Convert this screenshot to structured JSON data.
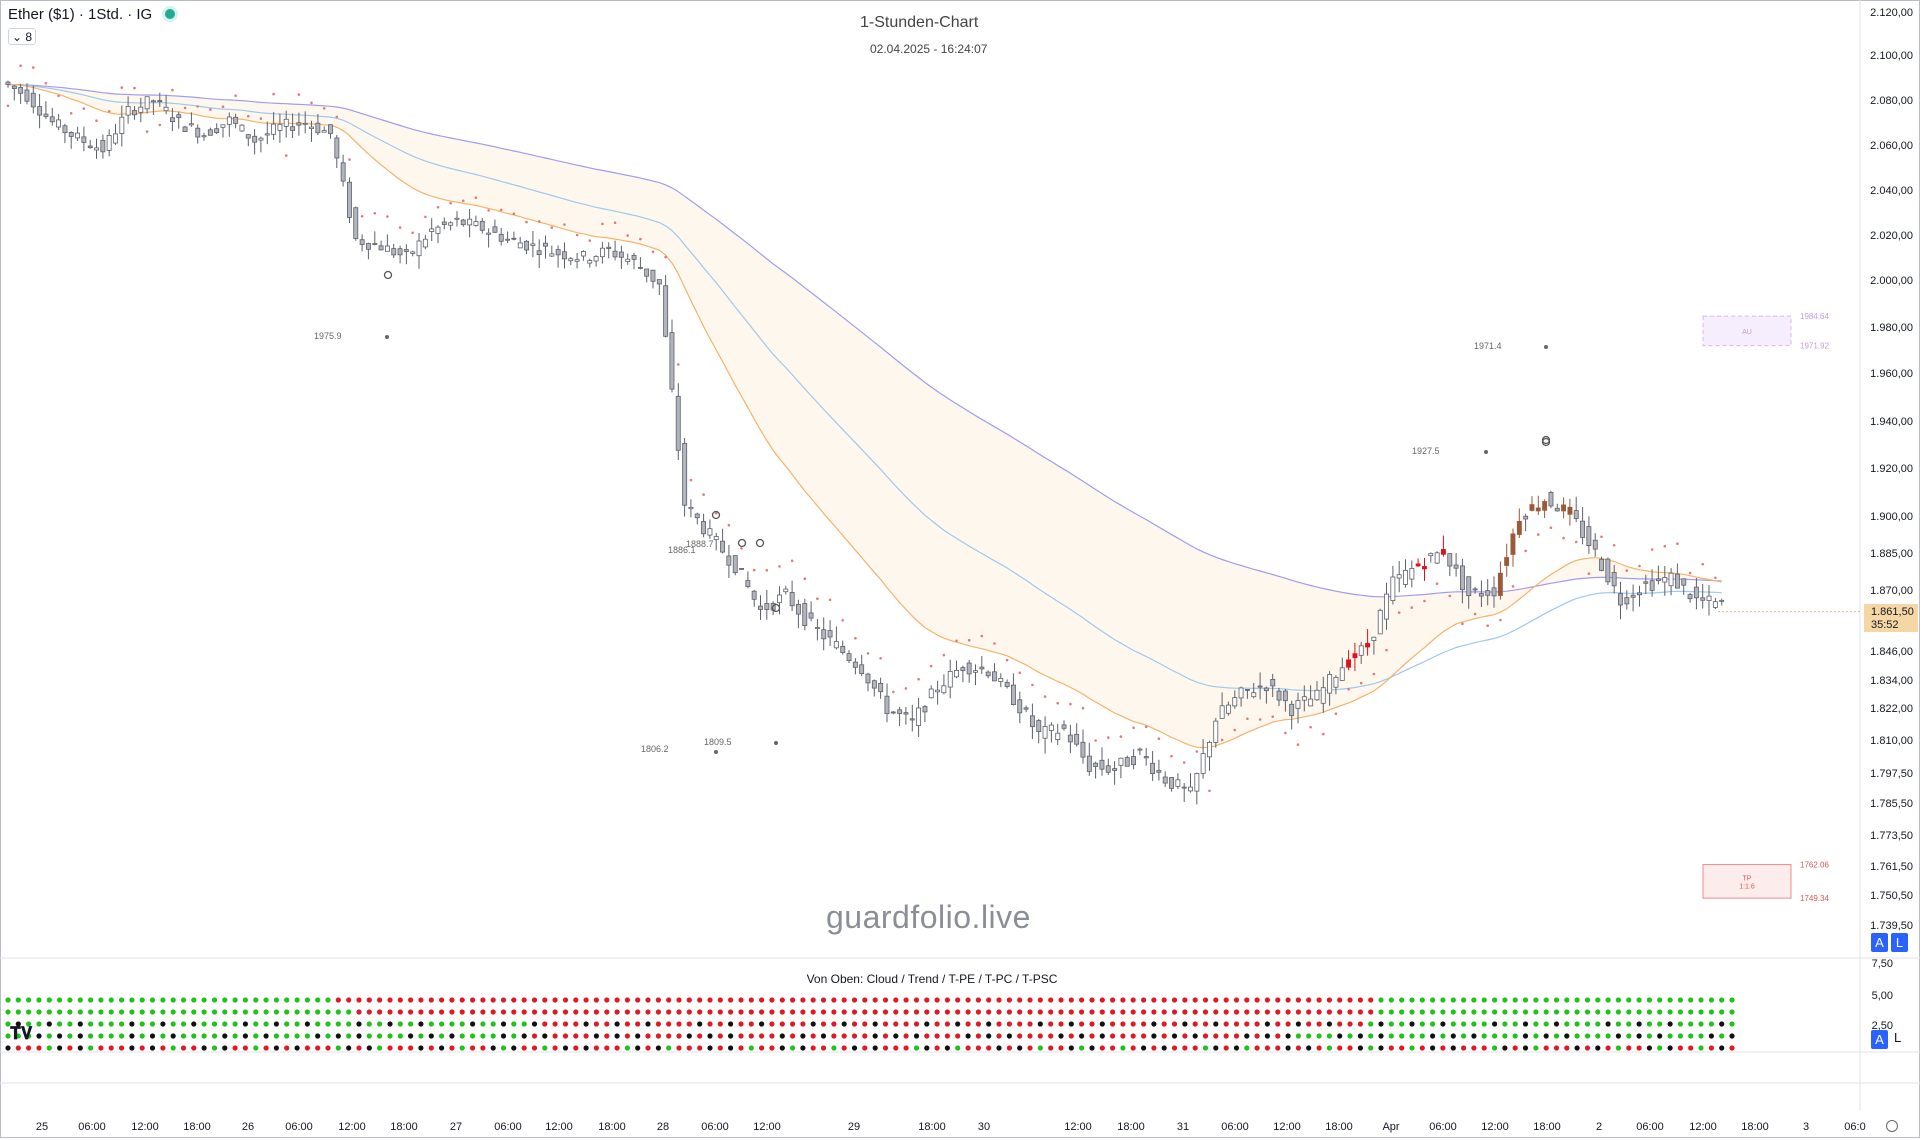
{
  "header": {
    "symbol": "Ether ($1) · 1Std. · IG",
    "indicator_count": "8",
    "chart_title": "1-Stunden-Chart",
    "chart_date": "02.04.2025 - 16:24:07",
    "watermark": "guardfolio.live",
    "logo": "TV"
  },
  "colors": {
    "up": "#ffffff",
    "down": "#b2b5be",
    "bear_highlight": "#e0101d",
    "bull_highlight": "#9a5a3a",
    "psar": "#e07a7a",
    "ema_fast": "#f5b26b",
    "ema_mid": "#9ec8f0",
    "ema_slow": "#a09cf0",
    "dot_green": "#21c21b",
    "dot_red": "#e01a24",
    "dot_black": "#111111"
  },
  "price_axis": {
    "labels": [
      "2.120,00",
      "2.100,00",
      "2.080,00",
      "2.060,00",
      "2.040,00",
      "2.020,00",
      "2.000,00",
      "1.980,00",
      "1.960,00",
      "1.940,00",
      "1.920,00",
      "1.900,00",
      "1.885,00",
      "1.870,00",
      "1.846,00",
      "1.834,00",
      "1.822,00",
      "1.810,00",
      "1.797,50",
      "1.785,50",
      "1.773,50",
      "1.761,50",
      "1.750,50",
      "1.739,50"
    ],
    "current_price": "1.861,50",
    "countdown": "35:52",
    "badge_a": "A",
    "badge_l": "L"
  },
  "indicator_pane": {
    "title": "Von Oben: Cloud / Trend / T-PE / T-PC / T-PSC",
    "axis_labels": [
      "7,50",
      "5,00",
      "2,50"
    ],
    "badge_a": "A",
    "badge_l": "L"
  },
  "time_axis": {
    "labels": [
      "25",
      "06:00",
      "12:00",
      "18:00",
      "26",
      "06:00",
      "12:00",
      "18:00",
      "27",
      "06:00",
      "12:00",
      "18:00",
      "28",
      "06:00",
      "12:00",
      "29",
      "18:00",
      "30",
      "12:00",
      "18:00",
      "31",
      "06:00",
      "12:00",
      "18:00",
      "Apr",
      "06:00",
      "12:00",
      "18:00",
      "2",
      "06:00",
      "12:00",
      "18:00",
      "3",
      "06:0"
    ]
  },
  "annotations": {
    "pivot_labels": [
      "1975.9",
      "1971.4",
      "1927.5",
      "1888.7",
      "1886.1",
      "1809.5",
      "1806.2"
    ],
    "box_upper": {
      "label": "AU",
      "high": "1984.64",
      "low": "1971.92"
    },
    "box_lower": {
      "label": "TP",
      "ratio": "1:1.6",
      "high": "1762.06",
      "low": "1749.34"
    }
  },
  "chart_data": {
    "type": "candlestick",
    "title": "1-Stunden-Chart",
    "instrument": "Ether ($1)",
    "interval": "1h",
    "ylim": [
      1735,
      2125
    ],
    "x": [
      "25",
      "06:00",
      "12:00",
      "18:00",
      "26",
      "06:00",
      "12:00",
      "18:00",
      "27",
      "06:00",
      "12:00",
      "18:00",
      "28",
      "06:00",
      "12:00",
      "29",
      "18:00",
      "30",
      "12:00",
      "18:00",
      "31",
      "06:00",
      "12:00",
      "18:00",
      "Apr",
      "06:00",
      "12:00",
      "18:00",
      "2",
      "06:00",
      "12:00",
      "18:00",
      "3"
    ],
    "close_path": [
      2088,
      2082,
      2070,
      2063,
      2058,
      2075,
      2080,
      2070,
      2065,
      2071,
      2062,
      2068,
      2070,
      2065,
      2018,
      2015,
      2010,
      2022,
      2026,
      2023,
      2018,
      2015,
      2012,
      2010,
      2013,
      2008,
      1998,
      1905,
      1892,
      1880,
      1862,
      1868,
      1856,
      1848,
      1839,
      1822,
      1816,
      1831,
      1840,
      1838,
      1826,
      1812,
      1814,
      1800,
      1799,
      1805,
      1795,
      1789,
      1818,
      1828,
      1832,
      1822,
      1827,
      1840,
      1848,
      1873,
      1880,
      1886,
      1868,
      1870,
      1900,
      1907,
      1901,
      1885,
      1866,
      1872,
      1875,
      1866,
      1864
    ],
    "psar_start": 2080,
    "psar_end": 1873
  }
}
